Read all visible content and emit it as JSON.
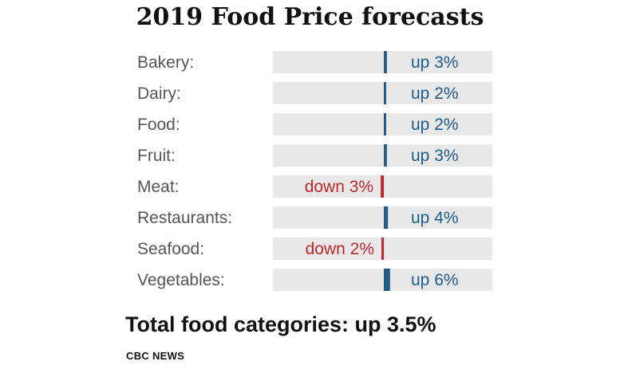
{
  "chart_data": {
    "type": "bar",
    "title": "2019 Food Price forecasts",
    "categories": [
      "Bakery:",
      "Dairy:",
      "Food:",
      "Fruit:",
      "Meat:",
      "Restaurants:",
      "Seafood:",
      "Vegetables:"
    ],
    "values": [
      3,
      2,
      2,
      3,
      -3,
      4,
      -2,
      6
    ],
    "labels": [
      "up 3%",
      "up 2%",
      "up 2%",
      "up 3%",
      "down 3%",
      "up 4%",
      "down 2%",
      "up 6%"
    ],
    "unit": "%",
    "colors": {
      "up": "#1f5c8a",
      "down": "#c0282e",
      "track": "#e8e8e8",
      "text": "#555555"
    },
    "xlim": [
      -35,
      30
    ]
  },
  "total_text": "Total food categories: up 3.5%",
  "source": "CBC NEWS"
}
